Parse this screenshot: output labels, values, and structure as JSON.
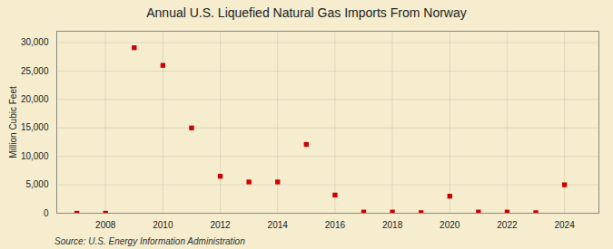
{
  "chart_data": {
    "type": "scatter",
    "title": "Annual U.S. Liquefied Natural Gas Imports From Norway",
    "ylabel": "Million Cubic Feet",
    "source": "Source: U.S. Energy Information Administration",
    "x": [
      2007,
      2008,
      2009,
      2010,
      2011,
      2012,
      2013,
      2014,
      2015,
      2016,
      2017,
      2018,
      2019,
      2020,
      2021,
      2022,
      2023,
      2024
    ],
    "values": [
      0,
      0,
      29100,
      26000,
      15000,
      6500,
      5500,
      5500,
      12100,
      3200,
      200,
      200,
      100,
      3000,
      200,
      200,
      100,
      5000
    ],
    "color": "#cc0000",
    "marker": "square",
    "xlim": [
      2006.3,
      2025.2
    ],
    "xticks": [
      2008,
      2010,
      2012,
      2014,
      2016,
      2018,
      2020,
      2022,
      2024
    ],
    "ylim": [
      0,
      32000
    ],
    "yticks": [
      0,
      {
        "value": 5000,
        "label": "5,000"
      },
      {
        "value": 10000,
        "label": "10,000"
      },
      {
        "value": 15000,
        "label": "15,000"
      },
      {
        "value": 20000,
        "label": "20,000"
      },
      {
        "value": 25000,
        "label": "25,000"
      },
      {
        "value": 30000,
        "label": "30,000"
      }
    ],
    "grid": true
  }
}
